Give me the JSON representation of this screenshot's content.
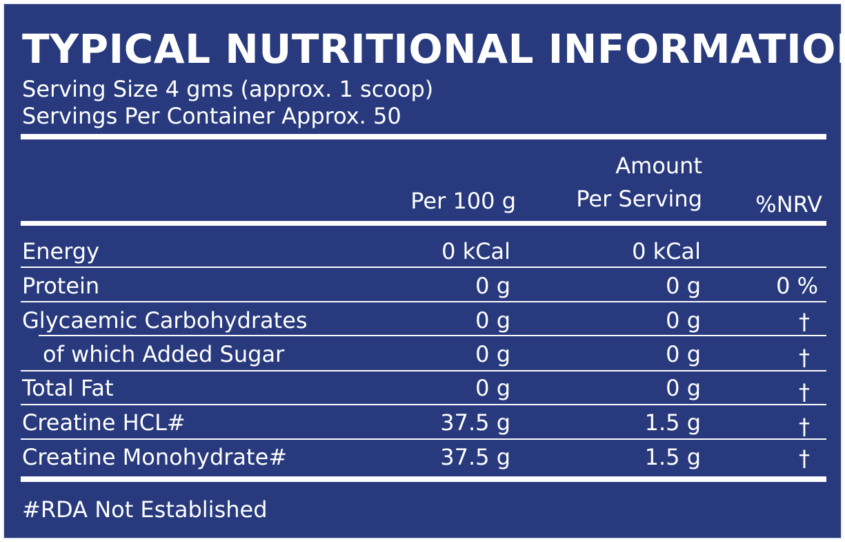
{
  "label": {
    "title": "TYPICAL NUTRITIONAL INFORMATION",
    "serving_size": "Serving Size 4 gms (approx. 1 scoop)",
    "servings_per_container": "Servings Per Container Approx. 50",
    "footnote": "#RDA Not Established"
  },
  "table": {
    "headers": {
      "per_100g": "Per 100 g",
      "amount_line1": "Amount",
      "amount_line2": "Per Serving",
      "nrv": "%NRV"
    },
    "rows": [
      {
        "name": "Energy",
        "per_100g": "0 kCal",
        "per_serving": "0 kCal",
        "nrv": ""
      },
      {
        "name": "Protein",
        "per_100g": "0 g",
        "per_serving": "0 g",
        "nrv": "0 %"
      },
      {
        "name": "Glycaemic Carbohydrates",
        "per_100g": "0 g",
        "per_serving": "0 g",
        "nrv": "†"
      },
      {
        "name": "of which Added Sugar",
        "per_100g": "0 g",
        "per_serving": "0 g",
        "nrv": "†"
      },
      {
        "name": "Total Fat",
        "per_100g": "0 g",
        "per_serving": "0 g",
        "nrv": "†"
      },
      {
        "name": "Creatine HCL#",
        "per_100g": "37.5 g",
        "per_serving": "1.5 g",
        "nrv": "†"
      },
      {
        "name": "Creatine Monohydrate#",
        "per_100g": "37.5 g",
        "per_serving": "1.5 g",
        "nrv": "†"
      }
    ]
  },
  "colors": {
    "background": "#283a7d",
    "text": "#ffffff"
  }
}
